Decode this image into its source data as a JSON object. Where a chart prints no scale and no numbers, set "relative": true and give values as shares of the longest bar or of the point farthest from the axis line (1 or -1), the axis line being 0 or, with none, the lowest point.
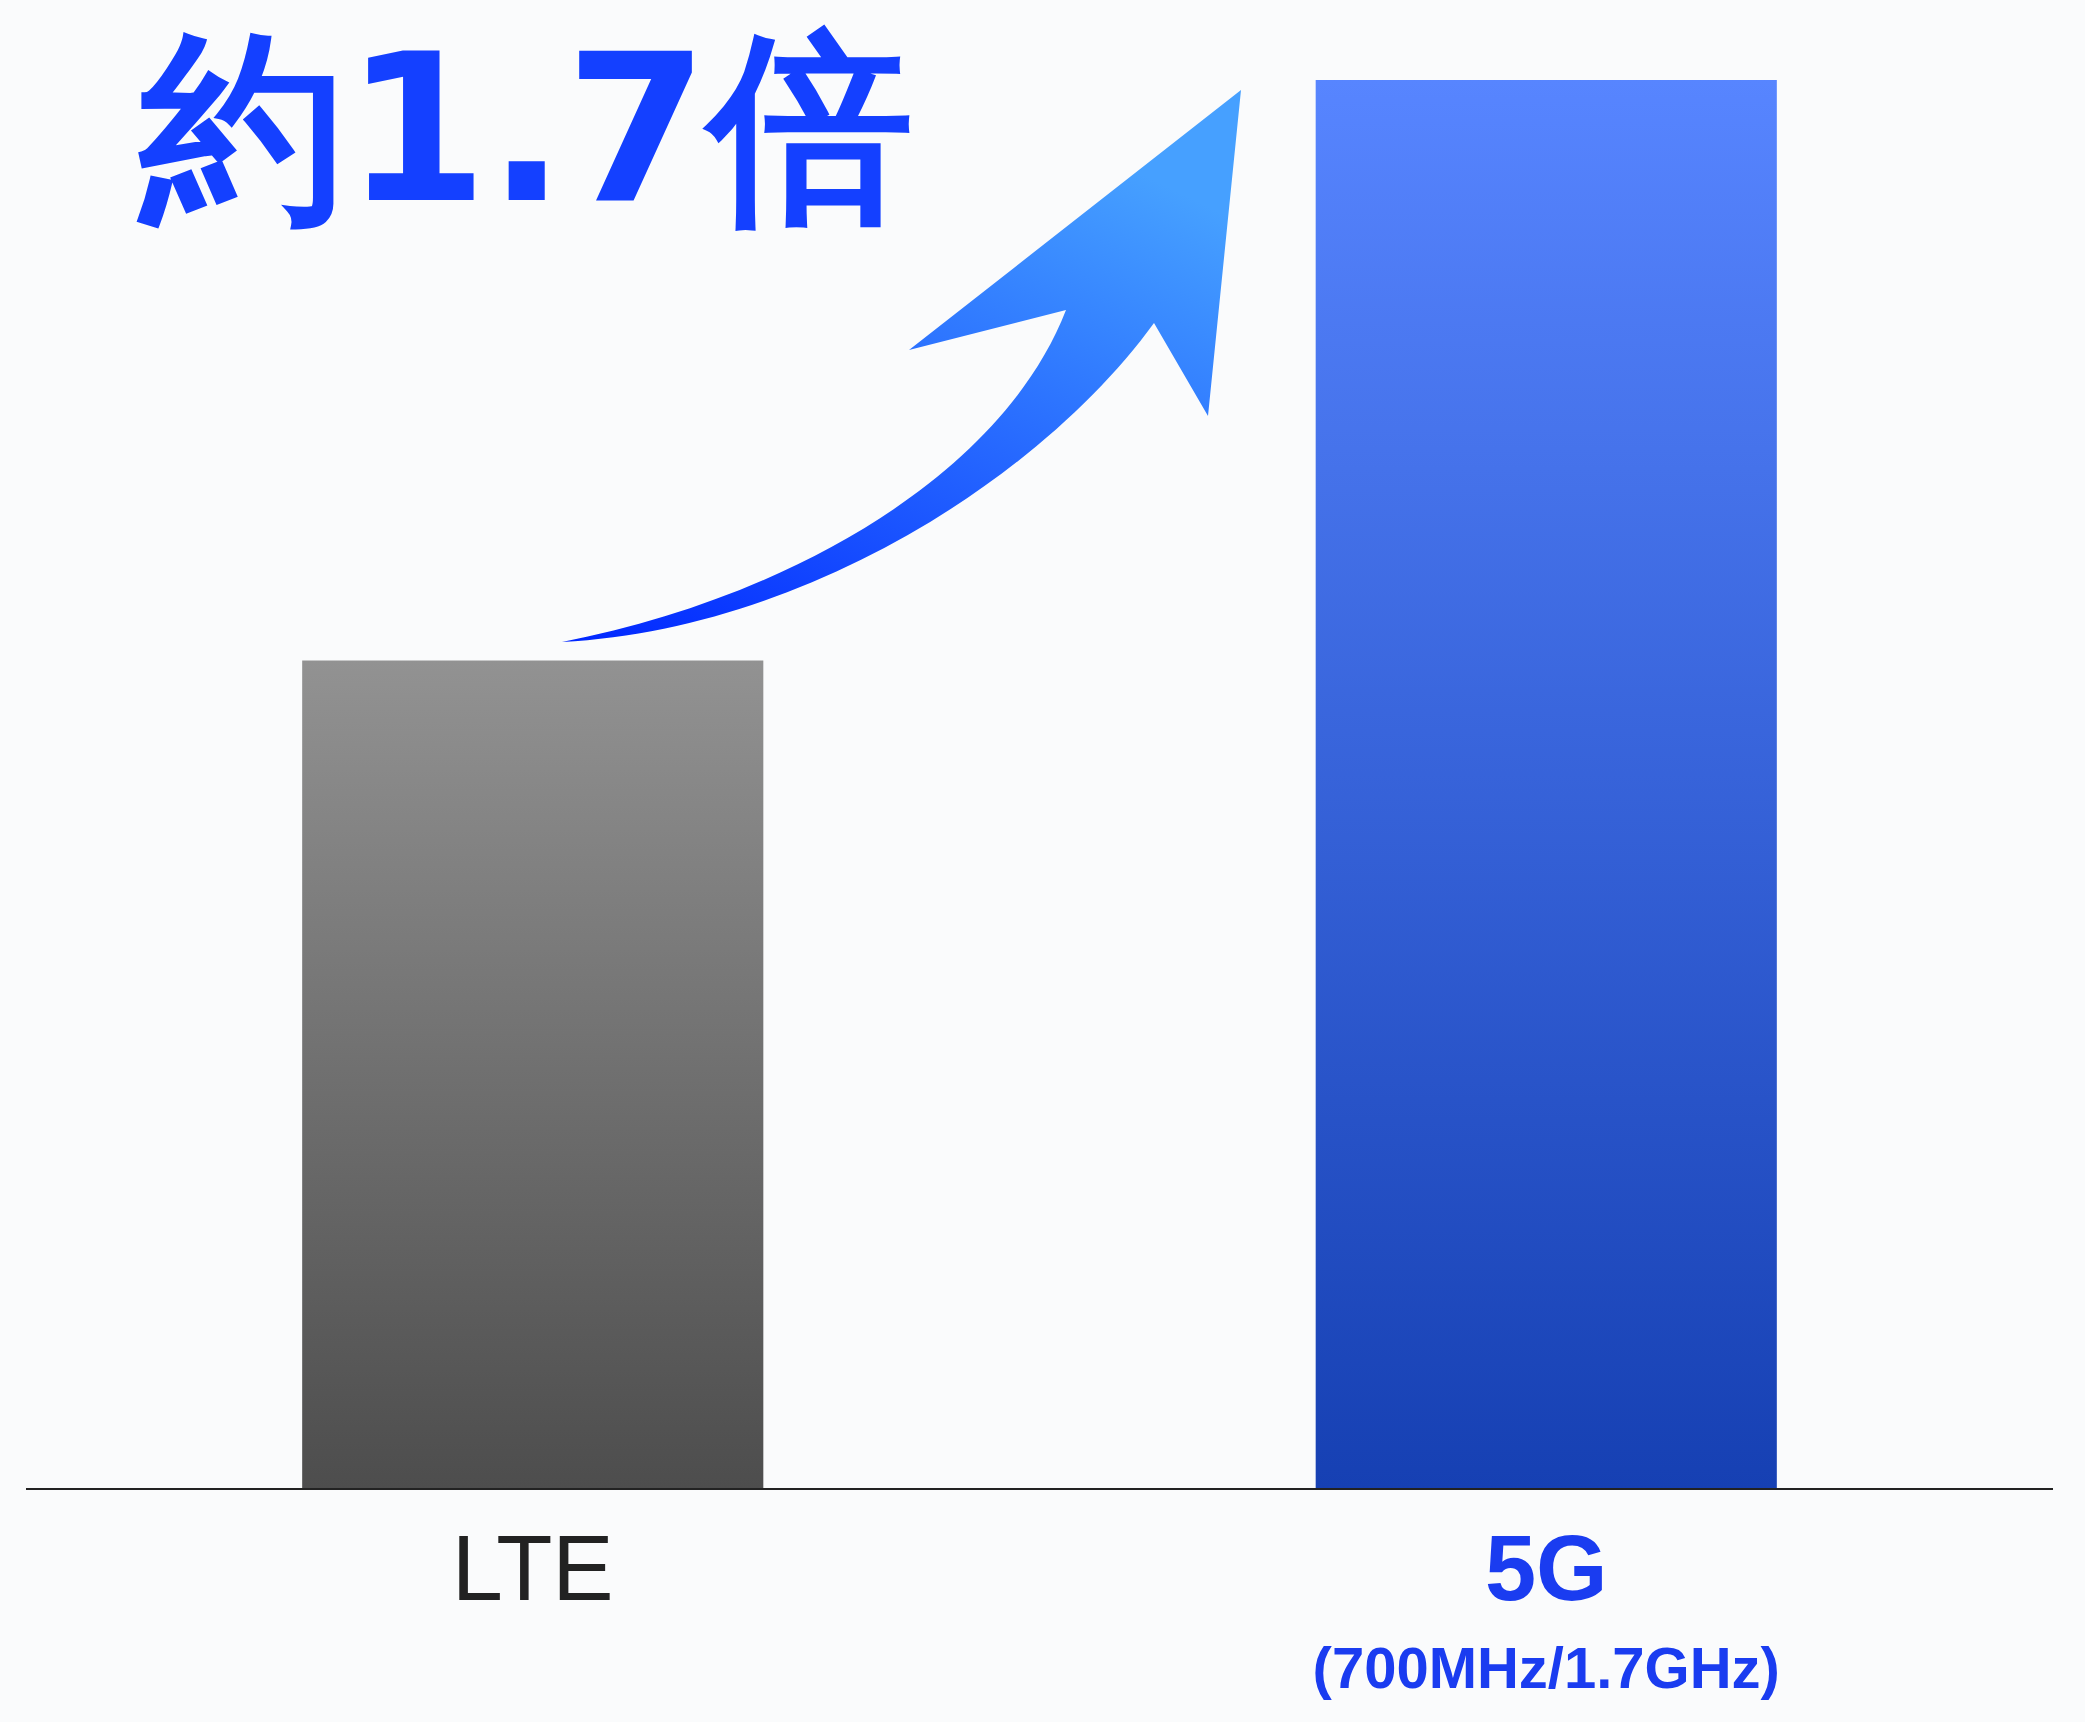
{
  "chart_data": {
    "type": "bar",
    "title": "約1.7倍",
    "relative": true,
    "categories": [
      "LTE",
      "5G\n(700MHz/1.7GHz)"
    ],
    "values": [
      0.588,
      1
    ],
    "colors": [
      "#6e6e6e",
      "#1f5cff"
    ]
  }
}
